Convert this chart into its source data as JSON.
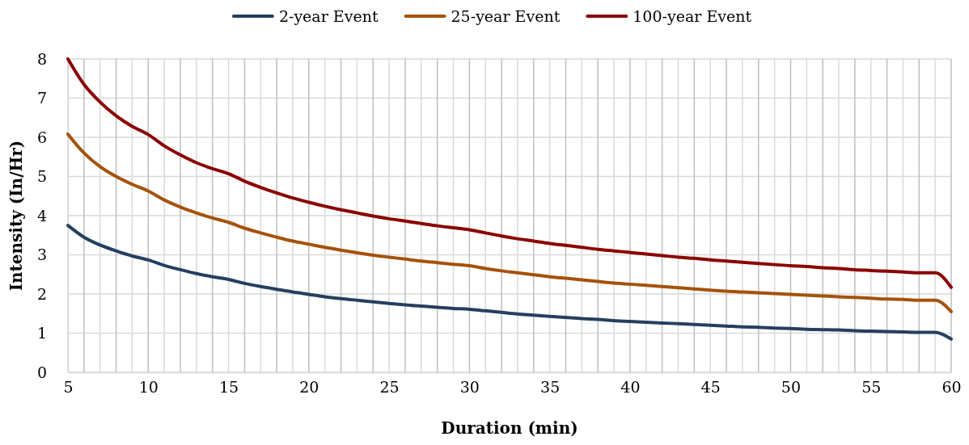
{
  "chart_data": {
    "type": "line",
    "xlabel": "Duration (min)",
    "ylabel": "Intensity (In/Hr)",
    "x": [
      5,
      6,
      7,
      8,
      9,
      10,
      11,
      12,
      13,
      14,
      15,
      16,
      17,
      18,
      19,
      20,
      21,
      22,
      23,
      24,
      25,
      26,
      27,
      28,
      29,
      30,
      31,
      32,
      33,
      34,
      35,
      36,
      37,
      38,
      39,
      40,
      41,
      42,
      43,
      44,
      45,
      46,
      47,
      48,
      49,
      50,
      51,
      52,
      53,
      54,
      55,
      56,
      57,
      58,
      59,
      60
    ],
    "series": [
      {
        "name": "2-year Event",
        "color": "#243f60",
        "values": [
          3.75,
          3.45,
          3.25,
          3.1,
          2.97,
          2.87,
          2.73,
          2.62,
          2.52,
          2.44,
          2.37,
          2.27,
          2.19,
          2.12,
          2.05,
          1.99,
          1.93,
          1.88,
          1.84,
          1.8,
          1.76,
          1.72,
          1.69,
          1.66,
          1.63,
          1.61,
          1.57,
          1.53,
          1.49,
          1.46,
          1.43,
          1.4,
          1.37,
          1.35,
          1.32,
          1.3,
          1.28,
          1.26,
          1.24,
          1.22,
          1.2,
          1.18,
          1.16,
          1.15,
          1.13,
          1.12,
          1.1,
          1.09,
          1.08,
          1.06,
          1.05,
          1.04,
          1.03,
          1.02,
          1.02,
          0.85
        ]
      },
      {
        "name": "25-year Event",
        "color": "#a5520a",
        "values": [
          6.08,
          5.6,
          5.25,
          5.0,
          4.8,
          4.63,
          4.4,
          4.22,
          4.07,
          3.94,
          3.83,
          3.68,
          3.56,
          3.45,
          3.35,
          3.27,
          3.19,
          3.12,
          3.05,
          2.99,
          2.94,
          2.89,
          2.84,
          2.8,
          2.76,
          2.72,
          2.65,
          2.59,
          2.54,
          2.49,
          2.44,
          2.4,
          2.36,
          2.32,
          2.28,
          2.25,
          2.22,
          2.19,
          2.16,
          2.13,
          2.1,
          2.07,
          2.05,
          2.03,
          2.01,
          1.99,
          1.97,
          1.95,
          1.93,
          1.91,
          1.89,
          1.87,
          1.86,
          1.84,
          1.84,
          1.55
        ]
      },
      {
        "name": "100-year Event",
        "color": "#8b0000",
        "values": [
          8.0,
          7.35,
          6.9,
          6.55,
          6.28,
          6.07,
          5.78,
          5.55,
          5.35,
          5.2,
          5.07,
          4.88,
          4.72,
          4.58,
          4.45,
          4.34,
          4.24,
          4.15,
          4.07,
          3.99,
          3.92,
          3.86,
          3.8,
          3.74,
          3.69,
          3.64,
          3.56,
          3.48,
          3.41,
          3.35,
          3.29,
          3.24,
          3.19,
          3.14,
          3.1,
          3.06,
          3.02,
          2.98,
          2.94,
          2.91,
          2.87,
          2.84,
          2.81,
          2.78,
          2.75,
          2.72,
          2.7,
          2.67,
          2.65,
          2.62,
          2.6,
          2.58,
          2.56,
          2.54,
          2.54,
          2.17
        ]
      }
    ],
    "xlim": [
      5,
      60
    ],
    "xticks": [
      5,
      {
        "value": 6,
        "label": null
      },
      {
        "value": 7,
        "label": null
      },
      {
        "value": 8,
        "label": null
      },
      {
        "value": 9,
        "label": null
      },
      10,
      {
        "value": 11,
        "label": null
      },
      {
        "value": 12,
        "label": null
      },
      {
        "value": 13,
        "label": null
      },
      {
        "value": 14,
        "label": null
      },
      15,
      {
        "value": 16,
        "label": null
      },
      {
        "value": 17,
        "label": null
      },
      {
        "value": 18,
        "label": null
      },
      {
        "value": 19,
        "label": null
      },
      20,
      {
        "value": 21,
        "label": null
      },
      {
        "value": 22,
        "label": null
      },
      {
        "value": 23,
        "label": null
      },
      {
        "value": 24,
        "label": null
      },
      25,
      {
        "value": 26,
        "label": null
      },
      {
        "value": 27,
        "label": null
      },
      {
        "value": 28,
        "label": null
      },
      {
        "value": 29,
        "label": null
      },
      30,
      {
        "value": 31,
        "label": null
      },
      {
        "value": 32,
        "label": null
      },
      {
        "value": 33,
        "label": null
      },
      {
        "value": 34,
        "label": null
      },
      35,
      {
        "value": 36,
        "label": null
      },
      {
        "value": 37,
        "label": null
      },
      {
        "value": 38,
        "label": null
      },
      {
        "value": 39,
        "label": null
      },
      40,
      {
        "value": 41,
        "label": null
      },
      {
        "value": 42,
        "label": null
      },
      {
        "value": 43,
        "label": null
      },
      {
        "value": 44,
        "label": null
      },
      45,
      {
        "value": 46,
        "label": null
      },
      {
        "value": 47,
        "label": null
      },
      {
        "value": 48,
        "label": null
      },
      {
        "value": 49,
        "label": null
      },
      50,
      {
        "value": 51,
        "label": null
      },
      {
        "value": 52,
        "label": null
      },
      {
        "value": 53,
        "label": null
      },
      {
        "value": 54,
        "label": null
      },
      55,
      {
        "value": 56,
        "label": null
      },
      {
        "value": 57,
        "label": null
      },
      {
        "value": 58,
        "label": null
      },
      {
        "value": 59,
        "label": null
      },
      60
    ],
    "ylim": [
      0,
      8
    ],
    "yticks": [
      0,
      1,
      2,
      3,
      4,
      5,
      6,
      7,
      8
    ],
    "grid": true,
    "legend": "top",
    "marker": "none",
    "line_style": "solid"
  }
}
